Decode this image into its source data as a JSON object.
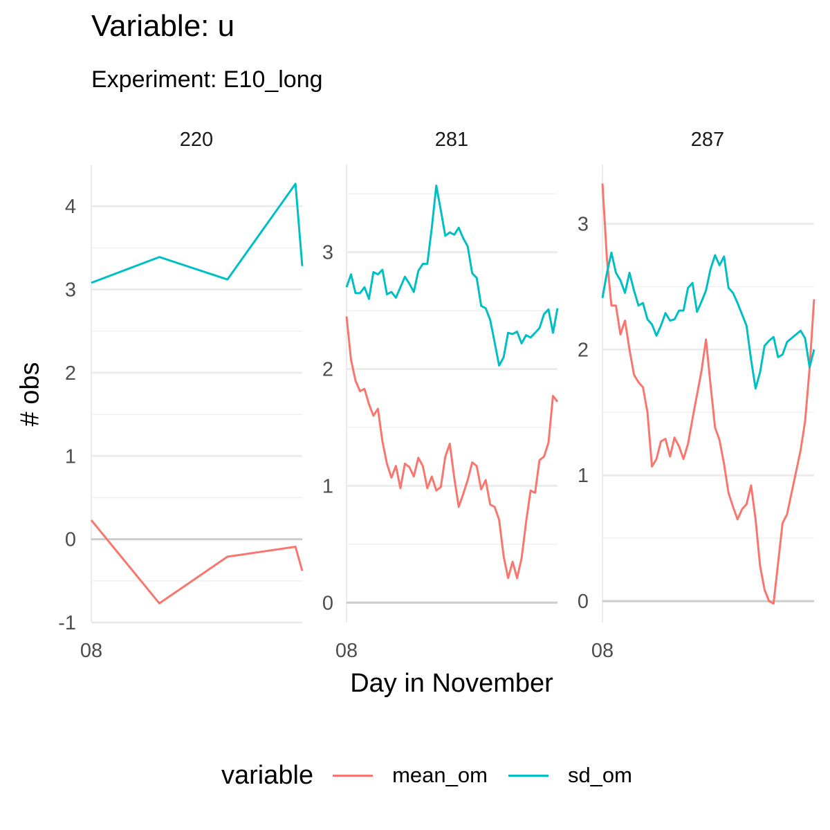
{
  "title": "Variable: u",
  "subtitle": "Experiment: E10_long",
  "xlabel": "Day in November",
  "ylabel": "# obs",
  "legend": {
    "title": "variable",
    "items": [
      {
        "label": "mean_om",
        "color": "#F8766D"
      },
      {
        "label": "sd_om",
        "color": "#00BFC4"
      }
    ]
  },
  "chart_data": [
    {
      "type": "line",
      "panel": "220",
      "x_tick_label": "08",
      "ylim": [
        -1,
        4.5
      ],
      "yticks": [
        -1,
        0,
        1,
        2,
        3,
        4
      ],
      "grid": true,
      "series": [
        {
          "name": "mean_om",
          "color": "#F8766D",
          "x": [
            0,
            1,
            2,
            3,
            3.1
          ],
          "y": [
            0.23,
            -0.77,
            -0.21,
            -0.09,
            -0.38
          ]
        },
        {
          "name": "sd_om",
          "color": "#00BFC4",
          "x": [
            0,
            1,
            2,
            3,
            3.1
          ],
          "y": [
            3.08,
            3.39,
            3.12,
            4.27,
            3.28
          ]
        }
      ]
    },
    {
      "type": "line",
      "panel": "281",
      "x_tick_label": "08",
      "ylim": [
        -0.17,
        3.75
      ],
      "yticks": [
        0,
        1,
        2,
        3
      ],
      "grid": true,
      "series": [
        {
          "name": "mean_om",
          "color": "#F8766D",
          "y": [
            2.45,
            2.08,
            1.9,
            1.81,
            1.83,
            1.7,
            1.6,
            1.66,
            1.38,
            1.19,
            1.07,
            1.17,
            0.98,
            1.19,
            1.16,
            1.08,
            1.24,
            1.17,
            0.98,
            1.08,
            0.96,
            0.99,
            1.25,
            1.36,
            1.07,
            0.82,
            0.93,
            1.05,
            1.2,
            1.17,
            0.97,
            1.05,
            0.84,
            0.82,
            0.71,
            0.4,
            0.21,
            0.35,
            0.21,
            0.38,
            0.69,
            0.96,
            0.94,
            1.22,
            1.25,
            1.37,
            1.77,
            1.72
          ]
        },
        {
          "name": "sd_om",
          "color": "#00BFC4",
          "y": [
            2.7,
            2.81,
            2.65,
            2.65,
            2.7,
            2.6,
            2.83,
            2.81,
            2.85,
            2.64,
            2.66,
            2.61,
            2.7,
            2.79,
            2.73,
            2.66,
            2.84,
            2.9,
            2.9,
            3.21,
            3.57,
            3.36,
            3.14,
            3.17,
            3.15,
            3.21,
            3.12,
            3.05,
            2.82,
            2.78,
            2.54,
            2.52,
            2.42,
            2.23,
            2.03,
            2.1,
            2.31,
            2.3,
            2.32,
            2.22,
            2.29,
            2.27,
            2.31,
            2.35,
            2.47,
            2.51,
            2.31,
            2.52
          ]
        }
      ]
    },
    {
      "type": "line",
      "panel": "287",
      "x_tick_label": "08",
      "ylim": [
        -0.17,
        3.47
      ],
      "yticks": [
        0,
        1,
        2,
        3
      ],
      "grid": true,
      "series": [
        {
          "name": "mean_om",
          "color": "#F8766D",
          "y": [
            3.32,
            2.72,
            2.35,
            2.35,
            2.12,
            2.23,
            2.0,
            1.8,
            1.74,
            1.7,
            1.5,
            1.07,
            1.13,
            1.27,
            1.29,
            1.15,
            1.3,
            1.23,
            1.13,
            1.25,
            1.45,
            1.64,
            1.83,
            2.08,
            1.72,
            1.38,
            1.28,
            1.09,
            0.86,
            0.75,
            0.65,
            0.73,
            0.77,
            0.92,
            0.65,
            0.28,
            0.09,
            0.0,
            -0.02,
            0.3,
            0.62,
            0.69,
            0.86,
            1.03,
            1.2,
            1.43,
            1.85,
            2.4
          ]
        },
        {
          "name": "sd_om",
          "color": "#00BFC4",
          "y": [
            2.41,
            2.61,
            2.77,
            2.61,
            2.55,
            2.45,
            2.61,
            2.47,
            2.35,
            2.37,
            2.24,
            2.2,
            2.11,
            2.19,
            2.29,
            2.23,
            2.24,
            2.31,
            2.31,
            2.49,
            2.53,
            2.3,
            2.38,
            2.47,
            2.64,
            2.75,
            2.67,
            2.74,
            2.49,
            2.45,
            2.37,
            2.28,
            2.19,
            1.92,
            1.69,
            1.82,
            2.03,
            2.07,
            2.1,
            1.94,
            1.96,
            2.06,
            2.09,
            2.12,
            2.15,
            2.09,
            1.86,
            2.0
          ]
        }
      ]
    }
  ]
}
